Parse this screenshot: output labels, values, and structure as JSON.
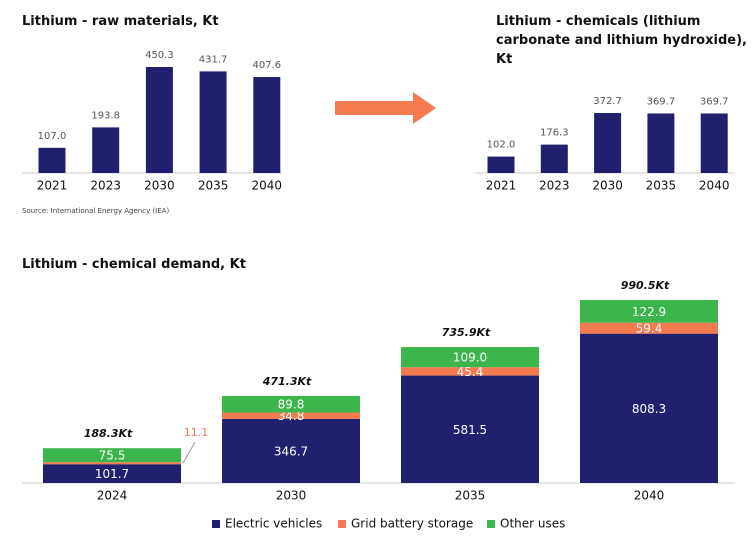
{
  "chart_data": [
    {
      "type": "bar",
      "title": "Lithium - raw materials, Kt",
      "categories": [
        "2021",
        "2023",
        "2030",
        "2035",
        "2040"
      ],
      "values": [
        107.0,
        193.8,
        450.3,
        431.7,
        407.6
      ],
      "value_labels": [
        "107.0",
        "193.8",
        "450.3",
        "431.7",
        "407.6"
      ],
      "color": "#20206e",
      "source": "Source: International Energy Agency (IEA)"
    },
    {
      "type": "bar",
      "title": "Lithium - chemicals (lithium carbonate and lithium hydroxide), Kt",
      "categories": [
        "2021",
        "2023",
        "2030",
        "2035",
        "2040"
      ],
      "values": [
        102.0,
        176.3,
        372.7,
        369.7,
        369.7
      ],
      "value_labels": [
        "102.0",
        "176.3",
        "372.7",
        "369.7",
        "369.7"
      ],
      "color": "#20206e"
    },
    {
      "type": "stacked_bar",
      "title": "Lithium - chemical demand, Kt",
      "categories": [
        "2024",
        "2030",
        "2035",
        "2040"
      ],
      "series": [
        {
          "name": "Electric vehicles",
          "color": "#20206e",
          "values": [
            101.7,
            346.7,
            581.5,
            808.3
          ],
          "value_labels": [
            "101.7",
            "346.7",
            "581.5",
            "808.3"
          ]
        },
        {
          "name": "Grid battery storage",
          "color": "#f47b4f",
          "values": [
            11.1,
            34.8,
            45.4,
            59.4
          ],
          "value_labels": [
            "11.1",
            "34.8",
            "45.4",
            "59.4"
          ]
        },
        {
          "name": "Other uses",
          "color": "#3cb54a",
          "values": [
            75.5,
            89.8,
            109.0,
            122.9
          ],
          "value_labels": [
            "75.5",
            "89.8",
            "109.0",
            "122.9"
          ]
        }
      ],
      "totals": [
        188.3,
        471.3,
        735.9,
        990.5
      ],
      "total_labels": [
        "188.3Kt",
        "471.3Kt",
        "735.9Kt",
        "990.5Kt"
      ],
      "legend": "bottom"
    }
  ]
}
